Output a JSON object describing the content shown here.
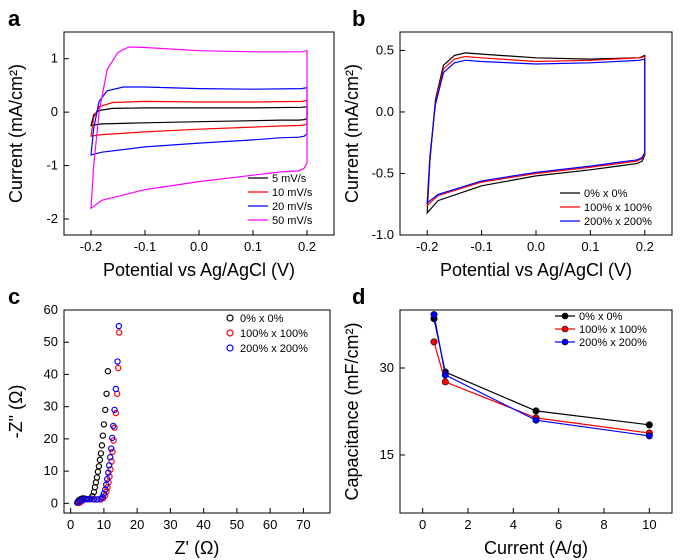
{
  "chart_data": [
    {
      "panel": "a",
      "type": "line",
      "xlabel": "Potential vs Ag/AgCl (V)",
      "ylabel": "Current (mA/cm²)",
      "xlim": [
        -0.25,
        0.25
      ],
      "ylim": [
        -2.3,
        1.5
      ],
      "xticks": [
        -0.2,
        -0.1,
        0.0,
        0.1,
        0.2
      ],
      "xtick_labels": [
        "-0.2",
        "-0.1",
        "0.0",
        "0.1",
        "0.2"
      ],
      "yticks": [
        -2,
        -1,
        0,
        1
      ],
      "ytick_labels": [
        "-2",
        "-1",
        "0",
        "1"
      ],
      "legend_position": "bottom-right",
      "series": [
        {
          "name": "5 mV/s",
          "color": "#000000",
          "x": [
            -0.2,
            -0.195,
            -0.185,
            -0.16,
            -0.1,
            0.0,
            0.1,
            0.19,
            0.2,
            0.2,
            0.195,
            0.185,
            0.15,
            0.1,
            0.0,
            -0.1,
            -0.18,
            -0.2
          ],
          "y": [
            -0.25,
            -0.05,
            0.03,
            0.07,
            0.08,
            0.08,
            0.08,
            0.09,
            0.1,
            -0.12,
            -0.14,
            -0.15,
            -0.15,
            -0.16,
            -0.18,
            -0.2,
            -0.22,
            -0.25
          ]
        },
        {
          "name": "10 mV/s",
          "color": "#ff0000",
          "x": [
            -0.2,
            -0.195,
            -0.185,
            -0.16,
            -0.1,
            0.0,
            0.1,
            0.19,
            0.2,
            0.2,
            0.195,
            0.185,
            0.15,
            0.1,
            0.0,
            -0.1,
            -0.18,
            -0.2
          ],
          "y": [
            -0.45,
            -0.1,
            0.1,
            0.18,
            0.2,
            0.19,
            0.19,
            0.2,
            0.22,
            -0.22,
            -0.24,
            -0.25,
            -0.26,
            -0.28,
            -0.32,
            -0.37,
            -0.42,
            -0.45
          ]
        },
        {
          "name": "20 mV/s",
          "color": "#0000ff",
          "x": [
            -0.2,
            -0.195,
            -0.185,
            -0.17,
            -0.14,
            -0.1,
            0.0,
            0.1,
            0.19,
            0.2,
            0.2,
            0.195,
            0.185,
            0.15,
            0.1,
            0.0,
            -0.1,
            -0.18,
            -0.2
          ],
          "y": [
            -0.8,
            -0.3,
            0.2,
            0.4,
            0.47,
            0.47,
            0.44,
            0.43,
            0.44,
            0.46,
            -0.4,
            -0.45,
            -0.47,
            -0.48,
            -0.52,
            -0.58,
            -0.65,
            -0.75,
            -0.8
          ]
        },
        {
          "name": "50 mV/s",
          "color": "#ff00ff",
          "x": [
            -0.2,
            -0.195,
            -0.185,
            -0.17,
            -0.15,
            -0.13,
            -0.1,
            0.0,
            0.1,
            0.19,
            0.2,
            0.2,
            0.195,
            0.185,
            0.15,
            0.1,
            0.0,
            -0.1,
            -0.18,
            -0.2
          ],
          "y": [
            -1.8,
            -1.0,
            0.0,
            0.8,
            1.12,
            1.22,
            1.21,
            1.15,
            1.13,
            1.13,
            1.15,
            -0.95,
            -1.05,
            -1.1,
            -1.12,
            -1.18,
            -1.3,
            -1.45,
            -1.65,
            -1.8
          ]
        }
      ]
    },
    {
      "panel": "b",
      "type": "line",
      "xlabel": "Potential vs Ag/AgCl (V)",
      "ylabel": "Current (mA/cm²)",
      "xlim": [
        -0.25,
        0.25
      ],
      "ylim": [
        -1.0,
        0.65
      ],
      "xticks": [
        -0.2,
        -0.1,
        0.0,
        0.1,
        0.2
      ],
      "xtick_labels": [
        "-0.2",
        "-0.1",
        "0.0",
        "0.1",
        "0.2"
      ],
      "yticks": [
        -1.0,
        -0.5,
        0.0,
        0.5
      ],
      "ytick_labels": [
        "-1.0",
        "-0.5",
        "0.0",
        "0.5"
      ],
      "legend_position": "bottom-right",
      "series": [
        {
          "name": "0% x 0%",
          "color": "#000000",
          "x": [
            -0.2,
            -0.195,
            -0.185,
            -0.17,
            -0.15,
            -0.13,
            -0.1,
            0.0,
            0.1,
            0.19,
            0.2,
            0.2,
            0.195,
            0.185,
            0.15,
            0.1,
            0.0,
            -0.1,
            -0.18,
            -0.2
          ],
          "y": [
            -0.82,
            -0.4,
            0.1,
            0.38,
            0.46,
            0.48,
            0.47,
            0.44,
            0.43,
            0.44,
            0.46,
            -0.35,
            -0.4,
            -0.42,
            -0.44,
            -0.47,
            -0.52,
            -0.6,
            -0.72,
            -0.82
          ]
        },
        {
          "name": "100% x 100%",
          "color": "#ff0000",
          "x": [
            -0.2,
            -0.195,
            -0.185,
            -0.17,
            -0.15,
            -0.13,
            -0.1,
            0.0,
            0.1,
            0.19,
            0.2,
            0.2,
            0.195,
            0.185,
            0.15,
            0.1,
            0.0,
            -0.1,
            -0.18,
            -0.2
          ],
          "y": [
            -0.76,
            -0.38,
            0.08,
            0.35,
            0.43,
            0.45,
            0.44,
            0.41,
            0.42,
            0.44,
            0.45,
            -0.34,
            -0.38,
            -0.4,
            -0.42,
            -0.45,
            -0.5,
            -0.57,
            -0.68,
            -0.76
          ]
        },
        {
          "name": "200% x 200%",
          "color": "#0000ff",
          "x": [
            -0.2,
            -0.195,
            -0.185,
            -0.17,
            -0.15,
            -0.13,
            -0.1,
            0.0,
            0.1,
            0.19,
            0.2,
            0.2,
            0.195,
            0.185,
            0.15,
            0.1,
            0.0,
            -0.1,
            -0.18,
            -0.2
          ],
          "y": [
            -0.74,
            -0.36,
            0.06,
            0.32,
            0.4,
            0.42,
            0.41,
            0.39,
            0.4,
            0.42,
            0.43,
            -0.33,
            -0.37,
            -0.39,
            -0.41,
            -0.44,
            -0.49,
            -0.56,
            -0.67,
            -0.74
          ]
        }
      ]
    },
    {
      "panel": "c",
      "type": "scatter",
      "xlabel": "Z' (Ω)",
      "ylabel": "-Z\" (Ω)",
      "xlim": [
        -2,
        78
      ],
      "ylim": [
        -3,
        60
      ],
      "xticks": [
        0,
        10,
        20,
        30,
        40,
        50,
        60,
        70
      ],
      "xtick_labels": [
        "0",
        "10",
        "20",
        "30",
        "40",
        "50",
        "60",
        "70"
      ],
      "yticks": [
        0,
        10,
        20,
        30,
        40,
        50,
        60
      ],
      "ytick_labels": [
        "0",
        "10",
        "20",
        "30",
        "40",
        "50",
        "60"
      ],
      "legend_position": "top-right",
      "series": [
        {
          "name": "0% x 0%",
          "color": "#000000",
          "x": [
            2.0,
            2.2,
            2.5,
            3.0,
            3.5,
            4.0,
            4.5,
            5.0,
            5.5,
            6.0,
            6.5,
            7.0,
            7.3,
            7.6,
            7.9,
            8.2,
            8.5,
            8.8,
            9.1,
            9.4,
            9.7,
            10.0,
            10.4,
            10.8,
            11.2
          ],
          "y": [
            0.2,
            0.6,
            1.0,
            1.3,
            1.5,
            1.5,
            1.4,
            1.3,
            1.3,
            1.5,
            2.2,
            3.5,
            5.0,
            6.5,
            8.0,
            9.8,
            11.5,
            13.5,
            15.5,
            18.0,
            21.0,
            24.5,
            29.0,
            34.0,
            41.0
          ]
        },
        {
          "name": "100% x 100%",
          "color": "#ff0000",
          "x": [
            2.5,
            3.0,
            3.5,
            4.0,
            5.0,
            6.0,
            7.0,
            8.0,
            9.0,
            9.8,
            10.4,
            10.8,
            11.1,
            11.4,
            11.7,
            12.0,
            12.3,
            12.6,
            12.9,
            13.2,
            13.6,
            14.0,
            14.3,
            14.6
          ],
          "y": [
            0.1,
            0.4,
            0.8,
            1.1,
            1.3,
            1.4,
            1.3,
            1.2,
            1.2,
            1.6,
            2.5,
            3.7,
            5.0,
            6.5,
            8.3,
            10.5,
            13.0,
            16.0,
            19.5,
            23.5,
            28.0,
            34.0,
            42.0,
            53.0
          ]
        },
        {
          "name": "200% x 200%",
          "color": "#0000ff",
          "x": [
            2.2,
            2.8,
            3.4,
            4.0,
            5.0,
            6.0,
            7.0,
            8.0,
            9.0,
            9.6,
            10.0,
            10.4,
            10.7,
            11.0,
            11.3,
            11.6,
            11.9,
            12.2,
            12.5,
            12.8,
            13.2,
            13.6,
            14.1,
            14.5
          ],
          "y": [
            0.3,
            0.7,
            1.0,
            1.2,
            1.3,
            1.3,
            1.2,
            1.2,
            1.4,
            2.0,
            3.0,
            4.3,
            5.8,
            7.5,
            9.5,
            11.8,
            14.3,
            17.0,
            20.3,
            24.0,
            29.0,
            35.5,
            44.0,
            55.0
          ]
        }
      ]
    },
    {
      "panel": "d",
      "type": "line",
      "xlabel": "Current (A/g)",
      "ylabel": "Capacitance (mF/cm²)",
      "xlim": [
        -1,
        11
      ],
      "ylim": [
        5,
        40
      ],
      "xticks": [
        0,
        2,
        4,
        6,
        8,
        10
      ],
      "xtick_labels": [
        "0",
        "2",
        "4",
        "6",
        "8",
        "10"
      ],
      "yticks": [
        15,
        30
      ],
      "ytick_labels": [
        "15",
        "30"
      ],
      "legend_position": "top-right",
      "series": [
        {
          "name": "0% x 0%",
          "color": "#000000",
          "x": [
            0.5,
            1,
            5,
            10
          ],
          "y": [
            38.5,
            29.3,
            22.6,
            20.2
          ]
        },
        {
          "name": "100% x 100%",
          "color": "#ff0000",
          "x": [
            0.5,
            1,
            5,
            10
          ],
          "y": [
            34.5,
            27.6,
            21.4,
            18.8
          ]
        },
        {
          "name": "200% x 200%",
          "color": "#0000ff",
          "x": [
            0.5,
            1,
            5,
            10
          ],
          "y": [
            39.2,
            28.8,
            21.0,
            18.3
          ]
        }
      ]
    }
  ],
  "panels": {
    "a": {
      "letter": "a"
    },
    "b": {
      "letter": "b"
    },
    "c": {
      "letter": "c"
    },
    "d": {
      "letter": "d"
    }
  }
}
